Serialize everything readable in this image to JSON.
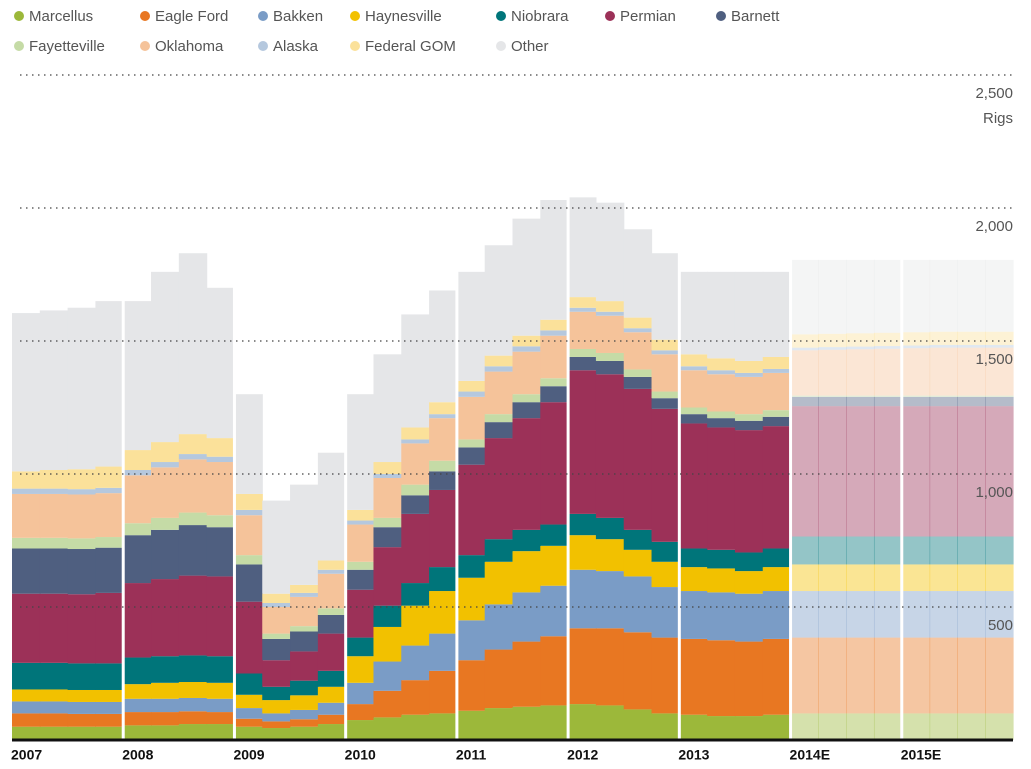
{
  "chart_data": {
    "type": "stacked_area",
    "y_axis_label": "Rigs",
    "estimate_from": "2014E",
    "categories": [
      "2007",
      null,
      null,
      null,
      "2008",
      null,
      null,
      null,
      "2009",
      null,
      null,
      null,
      "2010",
      null,
      null,
      null,
      "2011",
      null,
      null,
      null,
      "2012",
      null,
      null,
      null,
      "2013",
      null,
      null,
      null,
      "2014E",
      null,
      null,
      null,
      "2015E",
      null,
      null,
      null
    ],
    "ylim": [
      0,
      2500
    ],
    "yticks": [
      500,
      {
        "value": 1000,
        "label": "1,000"
      },
      {
        "value": 1500,
        "label": "1,500"
      },
      {
        "value": 2000,
        "label": "2,000"
      },
      {
        "value": 2500,
        "label": "2,500"
      }
    ],
    "grid": true,
    "series": [
      {
        "name": "Marcellus",
        "color": "#9cb83a",
        "values": [
          50,
          50,
          50,
          50,
          55,
          55,
          60,
          60,
          50,
          45,
          50,
          60,
          75,
          85,
          95,
          100,
          110,
          120,
          125,
          130,
          135,
          130,
          115,
          100,
          95,
          90,
          90,
          95,
          100,
          100,
          100,
          100,
          100,
          100,
          100,
          100
        ]
      },
      {
        "name": "Eagle Ford",
        "color": "#e87722",
        "values": [
          50,
          50,
          48,
          48,
          50,
          50,
          48,
          45,
          30,
          25,
          28,
          35,
          60,
          100,
          130,
          160,
          190,
          220,
          245,
          260,
          285,
          290,
          290,
          285,
          285,
          285,
          280,
          285,
          285,
          285,
          285,
          285,
          285,
          285,
          285,
          285
        ]
      },
      {
        "name": "Bakken",
        "color": "#7a9cc6",
        "values": [
          45,
          45,
          45,
          45,
          50,
          50,
          50,
          50,
          40,
          30,
          35,
          45,
          80,
          110,
          130,
          140,
          150,
          170,
          185,
          190,
          220,
          215,
          210,
          190,
          180,
          180,
          180,
          180,
          175,
          175,
          175,
          175,
          175,
          175,
          175,
          175
        ]
      },
      {
        "name": "Haynesville",
        "color": "#f2c100",
        "values": [
          45,
          45,
          45,
          45,
          55,
          60,
          60,
          60,
          50,
          50,
          55,
          60,
          100,
          130,
          150,
          160,
          160,
          160,
          155,
          150,
          130,
          120,
          100,
          95,
          90,
          90,
          85,
          90,
          100,
          100,
          100,
          100,
          100,
          100,
          100,
          100
        ]
      },
      {
        "name": "Niobrara",
        "color": "#00757a",
        "values": [
          100,
          100,
          100,
          100,
          100,
          100,
          100,
          100,
          80,
          50,
          55,
          60,
          70,
          80,
          85,
          90,
          85,
          85,
          80,
          80,
          80,
          80,
          75,
          75,
          70,
          70,
          70,
          70,
          105,
          105,
          105,
          105,
          105,
          105,
          105,
          105
        ]
      },
      {
        "name": "Permian",
        "color": "#9c3158",
        "values": [
          260,
          260,
          260,
          265,
          280,
          290,
          300,
          300,
          270,
          100,
          110,
          140,
          180,
          220,
          260,
          290,
          340,
          380,
          420,
          460,
          540,
          540,
          530,
          500,
          470,
          460,
          460,
          460,
          490,
          490,
          490,
          490,
          490,
          490,
          490,
          490
        ]
      },
      {
        "name": "Barnett",
        "color": "#4f5f80",
        "values": [
          170,
          170,
          170,
          170,
          180,
          185,
          190,
          185,
          140,
          80,
          75,
          70,
          75,
          75,
          70,
          70,
          65,
          60,
          60,
          60,
          50,
          50,
          45,
          40,
          35,
          35,
          35,
          35,
          35,
          35,
          35,
          35,
          35,
          35,
          35,
          35
        ]
      },
      {
        "name": "Fayetteville",
        "color": "#c5dba6",
        "values": [
          40,
          40,
          40,
          40,
          45,
          45,
          47,
          45,
          35,
          20,
          20,
          25,
          30,
          35,
          40,
          40,
          30,
          30,
          30,
          30,
          30,
          30,
          28,
          25,
          25,
          25,
          25,
          25,
          5,
          5,
          5,
          5,
          5,
          5,
          5,
          5
        ]
      },
      {
        "name": "Oklahoma",
        "color": "#f5c39a",
        "values": [
          165,
          165,
          165,
          165,
          180,
          190,
          200,
          200,
          150,
          100,
          110,
          130,
          140,
          150,
          155,
          160,
          160,
          160,
          160,
          160,
          140,
          140,
          140,
          140,
          140,
          140,
          140,
          140,
          170,
          172,
          174,
          176,
          178,
          180,
          180,
          180
        ]
      },
      {
        "name": "Alaska",
        "color": "#b5c8de",
        "values": [
          20,
          20,
          20,
          20,
          20,
          20,
          20,
          20,
          20,
          15,
          15,
          15,
          15,
          15,
          15,
          15,
          20,
          20,
          20,
          20,
          15,
          15,
          15,
          15,
          15,
          15,
          15,
          15,
          10,
          10,
          10,
          10,
          10,
          10,
          10,
          10
        ]
      },
      {
        "name": "Federal GOM",
        "color": "#fbe19a",
        "values": [
          65,
          70,
          75,
          80,
          75,
          75,
          75,
          70,
          60,
          35,
          30,
          35,
          40,
          45,
          45,
          45,
          40,
          40,
          40,
          40,
          40,
          40,
          40,
          40,
          45,
          45,
          45,
          45,
          50,
          50,
          50,
          50,
          50,
          50,
          50,
          50
        ]
      },
      {
        "name": "Other",
        "color": "#e5e6e8",
        "values": [
          595,
          600,
          607,
          622,
          560,
          640,
          680,
          565,
          375,
          350,
          377,
          405,
          435,
          405,
          425,
          420,
          410,
          415,
          440,
          450,
          375,
          370,
          332,
          325,
          310,
          325,
          335,
          320,
          280,
          278,
          276,
          274,
          272,
          270,
          270,
          270
        ]
      }
    ]
  }
}
